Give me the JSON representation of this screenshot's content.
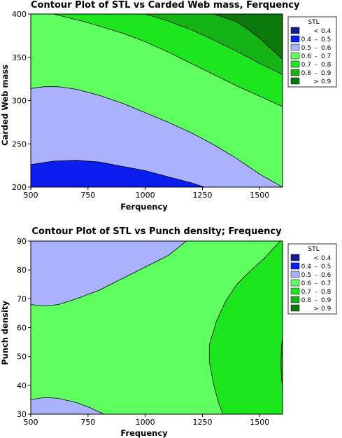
{
  "chart_data": [
    {
      "type": "contour",
      "title": "Contour Plot of STL vs Carded Web mass, Ferquency",
      "xlabel": "Ferquency",
      "ylabel": "Carded Web mass",
      "xlim": [
        500,
        1600
      ],
      "ylim": [
        200,
        400
      ],
      "xticks": [
        "500",
        "750",
        "1000",
        "1250",
        "1500"
      ],
      "yticks": [
        "200",
        "250",
        "300",
        "350",
        "400"
      ],
      "legend": {
        "title": "STL",
        "placement": "right",
        "items": [
          {
            "lo": "",
            "sep": "<",
            "hi": "0.4",
            "color": "#141e8c"
          },
          {
            "lo": "0.4",
            "sep": "–",
            "hi": "0.5",
            "color": "#0a1ef0"
          },
          {
            "lo": "0.5",
            "sep": "–",
            "hi": "0.6",
            "color": "#aab2ff"
          },
          {
            "lo": "0.6",
            "sep": "–",
            "hi": "0.7",
            "color": "#60ff60"
          },
          {
            "lo": "0.7",
            "sep": "–",
            "hi": "0.8",
            "color": "#1ee61e"
          },
          {
            "lo": "0.8",
            "sep": "–",
            "hi": "0.9",
            "color": "#14b414"
          },
          {
            "lo": "",
            "sep": ">",
            "hi": "0.9",
            "color": "#0a780a"
          }
        ]
      },
      "contours": [
        {
          "level": 0.5,
          "points": [
            [
              500,
              226
            ],
            [
              600,
              230
            ],
            [
              700,
              231
            ],
            [
              800,
              229
            ],
            [
              900,
              224
            ],
            [
              1000,
              219
            ],
            [
              1100,
              212
            ],
            [
              1200,
              205
            ],
            [
              1260,
              200
            ]
          ]
        },
        {
          "level": 0.6,
          "points": [
            [
              500,
              314
            ],
            [
              560,
              316
            ],
            [
              620,
              316
            ],
            [
              700,
              313
            ],
            [
              800,
              306
            ],
            [
              900,
              297
            ],
            [
              1000,
              286
            ],
            [
              1100,
              275
            ],
            [
              1200,
              263
            ],
            [
              1300,
              249
            ],
            [
              1400,
              233
            ],
            [
              1500,
              215
            ],
            [
              1600,
              200
            ]
          ]
        },
        {
          "level": 0.7,
          "points": [
            [
              600,
              400
            ],
            [
              750,
              390
            ],
            [
              900,
              378
            ],
            [
              1000,
              368
            ],
            [
              1100,
              356
            ],
            [
              1200,
              343
            ],
            [
              1300,
              330
            ],
            [
              1400,
              317
            ],
            [
              1500,
              305
            ],
            [
              1600,
              293
            ]
          ]
        },
        {
          "level": 0.8,
          "points": [
            [
              1000,
              400
            ],
            [
              1100,
              392
            ],
            [
              1200,
              382
            ],
            [
              1300,
              370
            ],
            [
              1400,
              357
            ],
            [
              1500,
              343
            ],
            [
              1600,
              330
            ]
          ]
        },
        {
          "level": 0.9,
          "points": [
            [
              1300,
              400
            ],
            [
              1400,
              391
            ],
            [
              1450,
              382
            ],
            [
              1500,
              372
            ],
            [
              1550,
              360
            ],
            [
              1600,
              348
            ]
          ]
        }
      ]
    },
    {
      "type": "contour",
      "title": "Contour Plot of STL vs Punch density; Frequency",
      "xlabel": "Frequency",
      "ylabel": "Punch density",
      "xlim": [
        500,
        1600
      ],
      "ylim": [
        30,
        90
      ],
      "xticks": [
        "500",
        "750",
        "1000",
        "1250",
        "1500"
      ],
      "yticks": [
        "30",
        "40",
        "50",
        "60",
        "70",
        "80",
        "90"
      ],
      "legend": {
        "title": "STL",
        "placement": "right",
        "items": [
          {
            "lo": "",
            "sep": "<",
            "hi": "0.4",
            "color": "#141e8c"
          },
          {
            "lo": "0.4",
            "sep": "–",
            "hi": "0.5",
            "color": "#0a1ef0"
          },
          {
            "lo": "0.5",
            "sep": "–",
            "hi": "0.6",
            "color": "#aab2ff"
          },
          {
            "lo": "0.6",
            "sep": "–",
            "hi": "0.7",
            "color": "#60ff60"
          },
          {
            "lo": "0.7",
            "sep": "–",
            "hi": "0.8",
            "color": "#1ee61e"
          },
          {
            "lo": "0.8",
            "sep": "–",
            "hi": "0.9",
            "color": "#14b414"
          },
          {
            "lo": "",
            "sep": ">",
            "hi": "0.9",
            "color": "#0a780a"
          }
        ]
      },
      "contours": [
        {
          "level": 0.6,
          "points": [
            [
              500,
              68
            ],
            [
              560,
              67.5
            ],
            [
              620,
              68
            ],
            [
              700,
              70
            ],
            [
              800,
              73
            ],
            [
              900,
              77
            ],
            [
              1000,
              81
            ],
            [
              1100,
              85
            ],
            [
              1180,
              90
            ]
          ]
        },
        {
          "level": 0.6,
          "points": [
            [
              500,
              35
            ],
            [
              560,
              35.8
            ],
            [
              620,
              35.5
            ],
            [
              700,
              34
            ],
            [
              760,
              32.2
            ],
            [
              820,
              30
            ]
          ]
        },
        {
          "level": 0.7,
          "points": [
            [
              1590,
              90
            ],
            [
              1520,
              84
            ],
            [
              1450,
              79
            ],
            [
              1400,
              75
            ],
            [
              1350,
              69
            ],
            [
              1310,
              62
            ],
            [
              1280,
              54
            ],
            [
              1280,
              48
            ],
            [
              1300,
              40
            ],
            [
              1320,
              34
            ],
            [
              1340,
              30
            ]
          ]
        },
        {
          "level": 0.8,
          "points": [
            [
              1600,
              57
            ],
            [
              1595,
              53
            ],
            [
              1593,
              48
            ],
            [
              1595,
              43
            ],
            [
              1600,
              39
            ]
          ]
        }
      ]
    }
  ]
}
